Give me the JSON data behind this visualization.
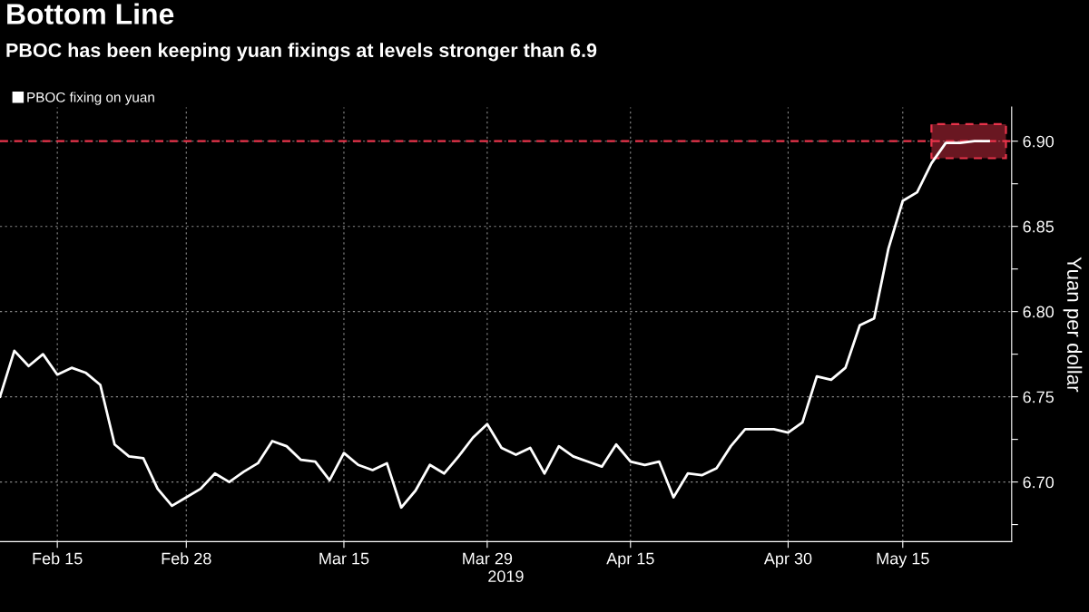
{
  "chart_data": {
    "type": "line",
    "title": "Bottom Line",
    "subtitle": "PBOC has been keeping yuan fixings at levels stronger than 6.9",
    "xlabel": "2019",
    "ylabel": "Yuan per dollar",
    "categories": [
      null,
      null,
      null,
      null,
      "Feb 15",
      null,
      null,
      null,
      null,
      null,
      null,
      null,
      null,
      "Feb 28",
      null,
      null,
      null,
      null,
      null,
      null,
      null,
      null,
      null,
      null,
      "Mar 15",
      null,
      null,
      null,
      null,
      null,
      null,
      null,
      null,
      null,
      "Mar 29",
      null,
      null,
      null,
      null,
      null,
      null,
      null,
      null,
      null,
      "Apr 15",
      null,
      null,
      null,
      null,
      null,
      null,
      null,
      null,
      null,
      null,
      "Apr 30",
      null,
      null,
      null,
      null,
      null,
      null,
      null,
      "May 15",
      null,
      null,
      null,
      null,
      null,
      null
    ],
    "series": [
      {
        "name": "PBOC fixing on yuan",
        "color": "#ffffff",
        "values": [
          6.75,
          6.777,
          6.768,
          6.775,
          6.763,
          6.767,
          6.764,
          6.757,
          6.722,
          6.715,
          6.714,
          6.696,
          6.686,
          6.691,
          6.696,
          6.705,
          6.7,
          6.706,
          6.711,
          6.724,
          6.721,
          6.713,
          6.712,
          6.701,
          6.717,
          6.71,
          6.707,
          6.711,
          6.685,
          6.695,
          6.71,
          6.705,
          6.715,
          6.726,
          6.734,
          6.72,
          6.716,
          6.72,
          6.705,
          6.721,
          6.715,
          6.712,
          6.709,
          6.722,
          6.712,
          6.71,
          6.712,
          6.691,
          6.705,
          6.704,
          6.708,
          6.721,
          6.731,
          6.731,
          6.731,
          6.729,
          6.735,
          6.762,
          6.76,
          6.767,
          6.792,
          6.796,
          6.837,
          6.865,
          6.87,
          6.887,
          6.899,
          6.899,
          6.9,
          6.9
        ]
      }
    ],
    "ylim": [
      6.665,
      6.92
    ],
    "yticks": [
      {
        "value": 6.675,
        "label": null
      },
      {
        "value": 6.7,
        "label": "6.70"
      },
      {
        "value": 6.725,
        "label": null
      },
      {
        "value": 6.75,
        "label": "6.75"
      },
      {
        "value": 6.775,
        "label": null
      },
      {
        "value": 6.8,
        "label": "6.80"
      },
      {
        "value": 6.825,
        "label": null
      },
      {
        "value": 6.85,
        "label": "6.85"
      },
      {
        "value": 6.875,
        "label": null
      },
      {
        "value": 6.9,
        "label": "6.90"
      }
    ],
    "ref_lines": [
      {
        "axis": "y",
        "value": 6.9,
        "color": "#e8334a",
        "line_style": "dashed"
      }
    ],
    "bands": [
      {
        "axis": "y",
        "from": 6.89,
        "to": 6.91,
        "color": "#e8334a"
      }
    ],
    "grid": true,
    "legend": "top left",
    "line_style": "solid",
    "marker": "none"
  }
}
